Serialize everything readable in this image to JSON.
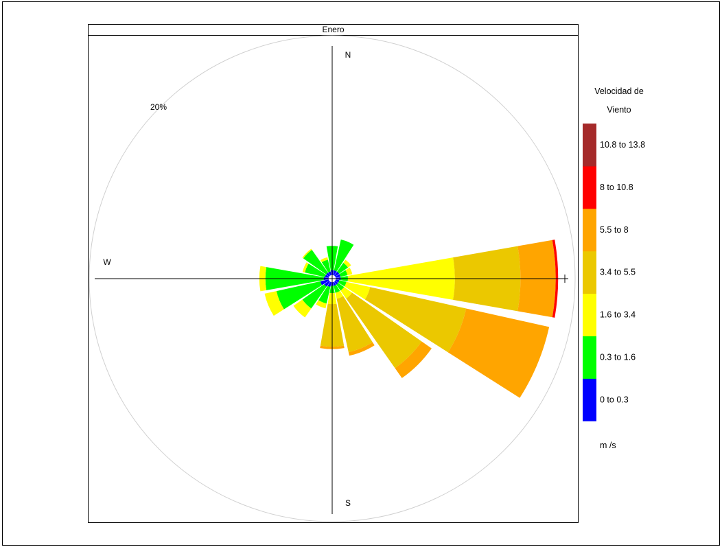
{
  "panel": {
    "title": "Enero"
  },
  "compass": {
    "n": "N",
    "s": "S",
    "w": "W"
  },
  "ring_label": "20%",
  "legend": {
    "title_line1": "Velocidad de",
    "title_line2": "Viento",
    "units": "m /s",
    "bins": [
      {
        "label": "0 to 0.3",
        "color": "#0000FF"
      },
      {
        "label": "0.3 to 1.6",
        "color": "#00FF00"
      },
      {
        "label": "1.6 to 3.4",
        "color": "#FFFF00"
      },
      {
        "label": "3.4 to 5.5",
        "color": "#EBC800"
      },
      {
        "label": "5.5 to 8",
        "color": "#FFA500"
      },
      {
        "label": "8 to 10.8",
        "color": "#FF0000"
      },
      {
        "label": "10.8 to 13.8",
        "color": "#A52A2A"
      }
    ]
  },
  "chart_data": {
    "type": "wind-rose",
    "title": "Enero",
    "direction_step_deg": 22.5,
    "frequency_unit": "%",
    "ring_label": "20%",
    "speed_unit": "m /s",
    "speed_bins": [
      "0 to 0.3",
      "0.3 to 1.6",
      "1.6 to 3.4",
      "3.4 to 5.5",
      "5.5 to 8",
      "8 to 10.8",
      "10.8 to 13.8"
    ],
    "directions": [
      {
        "dir": 0,
        "cum": [
          0.7,
          2.7,
          2.7,
          2.7,
          2.7,
          2.7,
          2.7
        ]
      },
      {
        "dir": 22.5,
        "cum": [
          0.7,
          3.3,
          3.3,
          3.3,
          3.3,
          3.3,
          3.3
        ]
      },
      {
        "dir": 45,
        "cum": [
          0.7,
          1.6,
          1.9,
          1.9,
          1.9,
          1.9,
          1.9
        ]
      },
      {
        "dir": 67.5,
        "cum": [
          0.7,
          1.3,
          1.7,
          1.7,
          1.7,
          1.7,
          1.7
        ]
      },
      {
        "dir": 90,
        "cum": [
          0.7,
          1.3,
          10.1,
          15.5,
          18.4,
          18.6,
          18.6
        ]
      },
      {
        "dir": 112.5,
        "cum": [
          0.6,
          1.2,
          3.2,
          11.3,
          18.3,
          18.3,
          18.3
        ]
      },
      {
        "dir": 135,
        "cum": [
          0.6,
          1.2,
          2.0,
          9.0,
          10.0,
          10.0,
          10.0
        ]
      },
      {
        "dir": 157.5,
        "cum": [
          0.6,
          1.2,
          1.7,
          6.2,
          6.5,
          6.5,
          6.5
        ]
      },
      {
        "dir": 180,
        "cum": [
          0.6,
          1.2,
          2.1,
          5.6,
          5.8,
          5.8,
          5.8
        ]
      },
      {
        "dir": 202.5,
        "cum": [
          0.7,
          2.1,
          2.5,
          2.5,
          2.5,
          2.5,
          2.5
        ]
      },
      {
        "dir": 225,
        "cum": [
          0.8,
          3.0,
          3.9,
          3.9,
          3.9,
          3.9,
          3.9
        ]
      },
      {
        "dir": 247.5,
        "cum": [
          1.0,
          4.7,
          5.7,
          5.7,
          5.7,
          5.7,
          5.7
        ]
      },
      {
        "dir": 270,
        "cum": [
          0.7,
          5.5,
          6.0,
          6.0,
          6.0,
          6.0,
          6.0
        ]
      },
      {
        "dir": 292.5,
        "cum": [
          0.6,
          2.3,
          2.5,
          2.5,
          2.5,
          2.5,
          2.5
        ]
      },
      {
        "dir": 315,
        "cum": [
          0.6,
          2.9,
          3.0,
          3.0,
          3.0,
          3.0,
          3.0
        ]
      },
      {
        "dir": 337.5,
        "cum": [
          0.6,
          1.6,
          1.8,
          1.8,
          1.8,
          1.8,
          1.8
        ]
      }
    ]
  }
}
